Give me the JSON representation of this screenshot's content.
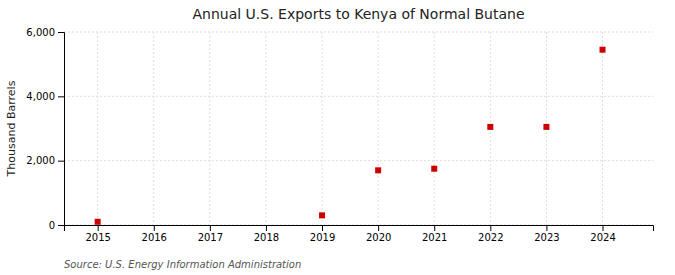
{
  "chart_data": {
    "type": "scatter",
    "title": "Annual U.S. Exports to Kenya of Normal Butane",
    "ylabel": "Thousand Barrels",
    "source": "Source: U.S. Energy Information Administration",
    "x": [
      2015,
      2016,
      2017,
      2018,
      2019,
      2020,
      2021,
      2022,
      2023,
      2024
    ],
    "values": [
      100,
      null,
      null,
      null,
      300,
      1700,
      1750,
      3050,
      3050,
      5450
    ],
    "color": "#cc0000",
    "marker": "square",
    "xlim": [
      2014.4,
      2024.9
    ],
    "ylim": [
      0,
      6000
    ],
    "xticks": [
      2015,
      2016,
      2017,
      2018,
      2019,
      2020,
      2021,
      2022,
      2023,
      2024
    ],
    "yticks": [
      0,
      {
        "value": 2000,
        "label": "2,000"
      },
      {
        "value": 4000,
        "label": "4,000"
      },
      {
        "value": 6000,
        "label": "6,000"
      }
    ],
    "grid": true
  }
}
